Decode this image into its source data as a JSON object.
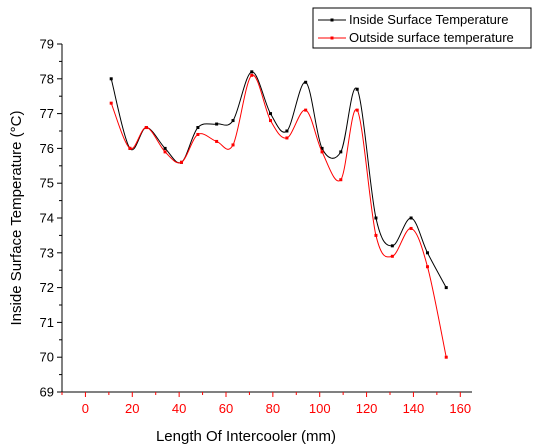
{
  "chart_data": {
    "type": "line",
    "title": "",
    "xlabel": "Length Of Intercooler (mm)",
    "ylabel": "Inside Surface Temperature (°C)",
    "xlim": [
      -10,
      165
    ],
    "ylim": [
      69,
      79
    ],
    "x_ticks": [
      0,
      20,
      40,
      60,
      80,
      100,
      120,
      140,
      160
    ],
    "y_ticks": [
      69,
      70,
      71,
      72,
      73,
      74,
      75,
      76,
      77,
      78,
      79
    ],
    "x_tick_color": "#ff0000",
    "grid": false,
    "legend_position": "top-right",
    "series": [
      {
        "name": "Inside Surface Temperature",
        "color": "#000000",
        "x": [
          11,
          19,
          26,
          34,
          41,
          48,
          56,
          63,
          71,
          79,
          86,
          94,
          101,
          109,
          116,
          124,
          131,
          139,
          146,
          154
        ],
        "values": [
          78.0,
          76.0,
          76.6,
          76.0,
          75.6,
          76.6,
          76.7,
          76.8,
          78.2,
          77.0,
          76.5,
          77.9,
          76.0,
          75.9,
          77.7,
          74.0,
          73.2,
          74.0,
          73.0,
          72.0
        ]
      },
      {
        "name": "Outside surface temperature",
        "color": "#ff0000",
        "x": [
          11,
          19,
          26,
          34,
          41,
          48,
          56,
          63,
          71,
          79,
          86,
          94,
          101,
          109,
          116,
          124,
          131,
          139,
          146,
          154
        ],
        "values": [
          77.3,
          76.0,
          76.6,
          75.9,
          75.6,
          76.4,
          76.2,
          76.1,
          78.1,
          76.8,
          76.3,
          77.1,
          75.9,
          75.1,
          77.1,
          73.5,
          72.9,
          73.7,
          72.6,
          70.0
        ]
      }
    ]
  }
}
